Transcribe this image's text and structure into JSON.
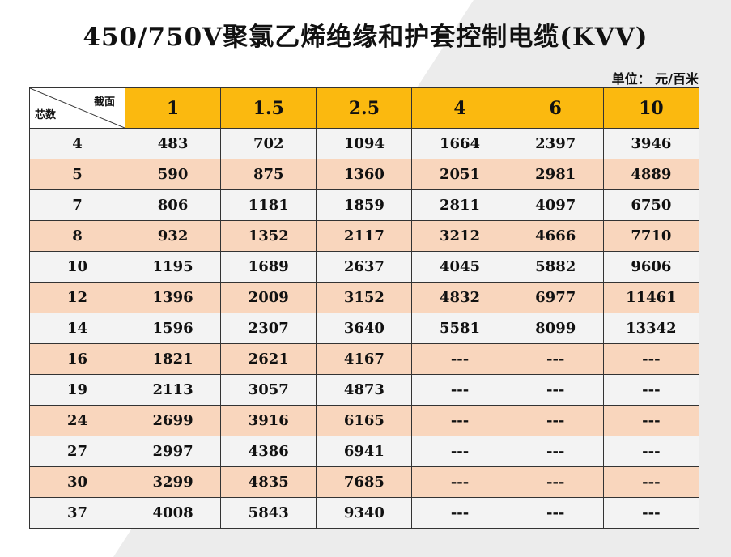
{
  "title": "450/750V聚氯乙烯绝缘和护套控制电缆(KVV)",
  "unit": "单位： 元/百米",
  "table": {
    "corner_top": "截面",
    "corner_bottom": "芯数",
    "headers": [
      "1",
      "1.5",
      "2.5",
      "4",
      "6",
      "10"
    ],
    "rows": [
      {
        "cores": "4",
        "values": [
          "483",
          "702",
          "1094",
          "1664",
          "2397",
          "3946"
        ]
      },
      {
        "cores": "5",
        "values": [
          "590",
          "875",
          "1360",
          "2051",
          "2981",
          "4889"
        ]
      },
      {
        "cores": "7",
        "values": [
          "806",
          "1181",
          "1859",
          "2811",
          "4097",
          "6750"
        ]
      },
      {
        "cores": "8",
        "values": [
          "932",
          "1352",
          "2117",
          "3212",
          "4666",
          "7710"
        ]
      },
      {
        "cores": "10",
        "values": [
          "1195",
          "1689",
          "2637",
          "4045",
          "5882",
          "9606"
        ]
      },
      {
        "cores": "12",
        "values": [
          "1396",
          "2009",
          "3152",
          "4832",
          "6977",
          "11461"
        ]
      },
      {
        "cores": "14",
        "values": [
          "1596",
          "2307",
          "3640",
          "5581",
          "8099",
          "13342"
        ]
      },
      {
        "cores": "16",
        "values": [
          "1821",
          "2621",
          "4167",
          "---",
          "---",
          "---"
        ]
      },
      {
        "cores": "19",
        "values": [
          "2113",
          "3057",
          "4873",
          "---",
          "---",
          "---"
        ]
      },
      {
        "cores": "24",
        "values": [
          "2699",
          "3916",
          "6165",
          "---",
          "---",
          "---"
        ]
      },
      {
        "cores": "27",
        "values": [
          "2997",
          "4386",
          "6941",
          "---",
          "---",
          "---"
        ]
      },
      {
        "cores": "30",
        "values": [
          "3299",
          "4835",
          "7685",
          "---",
          "---",
          "---"
        ]
      },
      {
        "cores": "37",
        "values": [
          "4008",
          "5843",
          "9340",
          "---",
          "---",
          "---"
        ]
      }
    ]
  },
  "colors": {
    "header_bg": "#fbb90f",
    "row_light": "#f3f3f3",
    "row_peach": "#f9d6bd"
  }
}
